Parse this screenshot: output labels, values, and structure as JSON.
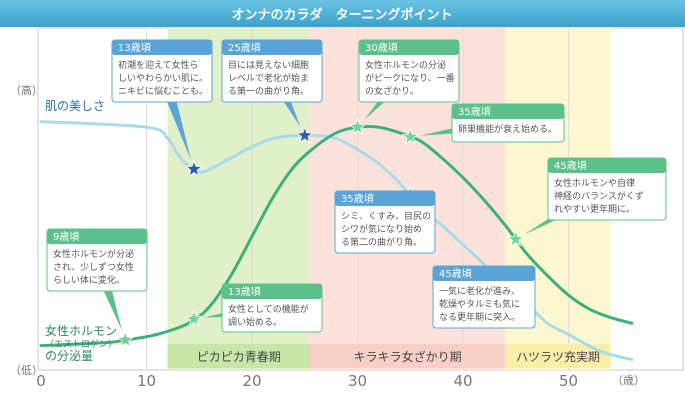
{
  "header": {
    "title": "オンナのカラダ　ターニングポイント"
  },
  "chart_data": {
    "type": "line",
    "title": "オンナのカラダ　ターニングポイント",
    "xlabel": "（歳）",
    "ylabel_high": "（高）",
    "ylabel_low": "（低）",
    "xlim": [
      0,
      56
    ],
    "ylim": [
      0,
      100
    ],
    "x_ticks": [
      0,
      10,
      20,
      30,
      40,
      50
    ],
    "x_tick_labels": [
      "0",
      "10",
      "20",
      "30",
      "40",
      "50"
    ],
    "grid": true,
    "series": [
      {
        "name": "肌の美しさ",
        "color": "#a8dbea",
        "points": [
          [
            0,
            88
          ],
          [
            10,
            86
          ],
          [
            12,
            82
          ],
          [
            13,
            76
          ],
          [
            14,
            72
          ],
          [
            15,
            70
          ],
          [
            16,
            71
          ],
          [
            18,
            75
          ],
          [
            20,
            79
          ],
          [
            22,
            82
          ],
          [
            24,
            83
          ],
          [
            26,
            83
          ],
          [
            28,
            82
          ],
          [
            30,
            78
          ],
          [
            32,
            73
          ],
          [
            34,
            66
          ],
          [
            36,
            57
          ],
          [
            38,
            51
          ],
          [
            40,
            44
          ],
          [
            42,
            37
          ],
          [
            44,
            29
          ],
          [
            46,
            23
          ],
          [
            48,
            16
          ],
          [
            50,
            12
          ],
          [
            53,
            6
          ],
          [
            56,
            3
          ]
        ]
      },
      {
        "name": "女性ホルモン（エストロゲン）の分泌量",
        "name_lines": [
          "女性ホルモン",
          "（エストロゲン）",
          "の分泌量"
        ],
        "color": "#3db07a",
        "points": [
          [
            0,
            8
          ],
          [
            6,
            9
          ],
          [
            8,
            10
          ],
          [
            11,
            12
          ],
          [
            14,
            16
          ],
          [
            16,
            22
          ],
          [
            18,
            33
          ],
          [
            20,
            47
          ],
          [
            22,
            61
          ],
          [
            24,
            72
          ],
          [
            26,
            79
          ],
          [
            28,
            84
          ],
          [
            30,
            86
          ],
          [
            32,
            86
          ],
          [
            34,
            84
          ],
          [
            36,
            81
          ],
          [
            38,
            75
          ],
          [
            40,
            68
          ],
          [
            42,
            60
          ],
          [
            44,
            51
          ],
          [
            46,
            41
          ],
          [
            48,
            33
          ],
          [
            50,
            26
          ],
          [
            52,
            21
          ],
          [
            54,
            18
          ],
          [
            56,
            16
          ]
        ]
      }
    ],
    "stages": [
      {
        "label": "ピカピカ青春期",
        "range": [
          12,
          25.5
        ],
        "color": "#e0f0c8",
        "label_color": "#444444",
        "band_color": "#c8e6a8"
      },
      {
        "label": "キラキラ女ざかり期",
        "range": [
          25.5,
          44
        ],
        "color": "#fde2dc",
        "label_color": "#444444",
        "band_color": "#f8cfc6"
      },
      {
        "label": "ハツラツ充実期",
        "range": [
          44,
          54
        ],
        "color": "#fdf7d0",
        "label_color": "#444444",
        "band_color": "#fbeea8"
      }
    ],
    "annotations": [
      {
        "age": "13歳頃",
        "text": "初潮を迎えて女性ら\nしいやわらかい肌に。\nニキビに悩むことも。",
        "series": 0,
        "x": 14.5,
        "kind": "skin"
      },
      {
        "age": "25歳頃",
        "text": "目には見えない細胞\nレベルで老化が始ま\nる第一の曲がり角。",
        "series": 0,
        "x": 25,
        "kind": "skin"
      },
      {
        "age": "30歳頃",
        "text": "女性ホルモンの分泌\nがピークになり、一番\nの女ざかり。",
        "series": 1,
        "x": 30,
        "kind": "hormone"
      },
      {
        "age": "35歳頃",
        "text": "卵巣機能が衰え始める。",
        "series": 1,
        "x": 35,
        "kind": "hormone"
      },
      {
        "age": "35歳頃",
        "text": "シミ、くすみ、目尻の\nシワが気になり始め\nる第二の曲がり角。",
        "series": 0,
        "x": 35,
        "kind": "skin"
      },
      {
        "age": "45歳頃",
        "text": "女性ホルモンや自律\n神経のバランスがくず\nれやすい更年期に。",
        "series": 1,
        "x": 45,
        "kind": "hormone"
      },
      {
        "age": "45歳頃",
        "text": "一気に老化が進み、\n乾燥やタルミも気に\nなる更年期に突入。",
        "series": 0,
        "x": 45,
        "kind": "skin"
      },
      {
        "age": "9歳頃",
        "text": "女性ホルモンが分泌\nされ、少しずつ女性\nらしい体に変化。",
        "series": 1,
        "x": 8,
        "kind": "hormone"
      },
      {
        "age": "13歳頃",
        "text": "女性としての機能が\n調い始める。",
        "series": 1,
        "x": 14.5,
        "kind": "hormone"
      }
    ]
  },
  "colors": {
    "header_bg": "#4fb2d6",
    "header_text": "#ffffff",
    "skin_box": "#5aa4d8",
    "hormone_box": "#5cc08a",
    "skin_star": "#2a5fb0",
    "hormone_star": "#6ed49a",
    "axis_text": "#666666"
  }
}
